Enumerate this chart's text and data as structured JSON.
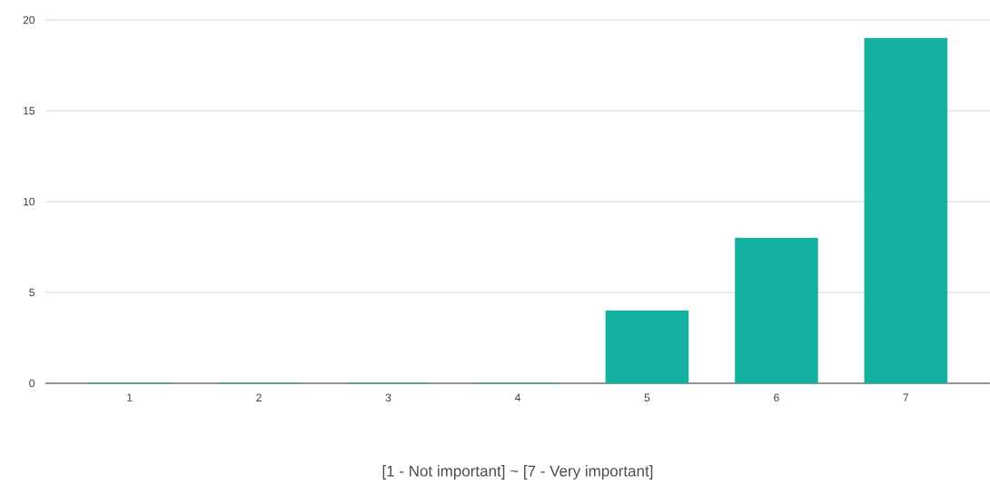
{
  "chart_data": {
    "type": "bar",
    "xlabel": "[1 - Not important] ~ [7 - Very important]",
    "categories": [
      "1",
      "2",
      "3",
      "4",
      "5",
      "6",
      "7"
    ],
    "values": [
      0,
      0,
      0,
      0,
      4,
      8,
      19
    ],
    "color": "#14b1a0",
    "ylim": [
      0,
      20
    ],
    "yticks": [
      0,
      5,
      10,
      15,
      20
    ],
    "grid": "y"
  }
}
